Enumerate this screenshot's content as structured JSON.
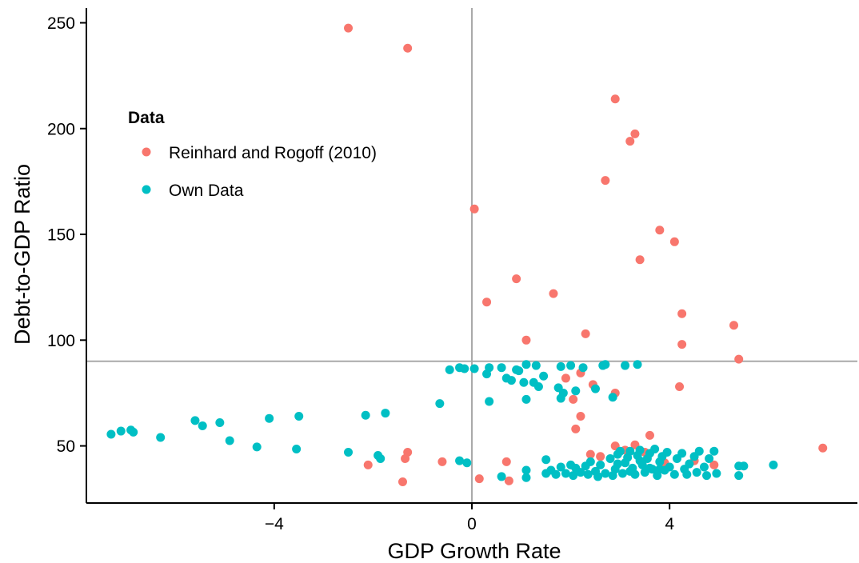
{
  "chart_data": {
    "type": "scatter",
    "title": "",
    "xlabel": "GDP Growth Rate",
    "ylabel": "Debt-to-GDP Ratio",
    "xlim": [
      -7.8,
      7.8
    ],
    "ylim": [
      23,
      257
    ],
    "x_ticks": [
      -4,
      0,
      4
    ],
    "x_tick_labels": [
      "−4",
      "0",
      "4"
    ],
    "y_ticks": [
      50,
      100,
      150,
      200,
      250
    ],
    "y_tick_labels": [
      "50",
      "100",
      "150",
      "200",
      "250"
    ],
    "grid": false,
    "reference_lines": {
      "x": 0,
      "y": 90,
      "color": "#aaaaaa"
    },
    "legend": {
      "title": "Data",
      "position": "top-left"
    },
    "series": [
      {
        "name": "Reinhard and Rogoff (2010)",
        "color": "#F8766D",
        "points": [
          [
            -2.5,
            247.5
          ],
          [
            -1.3,
            238
          ],
          [
            2.9,
            214
          ],
          [
            3.3,
            197.5
          ],
          [
            3.2,
            194
          ],
          [
            2.7,
            175.5
          ],
          [
            0.05,
            162
          ],
          [
            3.8,
            152
          ],
          [
            4.1,
            146.5
          ],
          [
            3.4,
            138
          ],
          [
            0.9,
            129
          ],
          [
            1.65,
            122
          ],
          [
            0.3,
            118
          ],
          [
            4.25,
            112.5
          ],
          [
            5.3,
            107
          ],
          [
            2.3,
            103
          ],
          [
            1.1,
            100
          ],
          [
            4.25,
            98
          ],
          [
            5.4,
            91
          ],
          [
            1.9,
            82
          ],
          [
            2.2,
            84.5
          ],
          [
            2.45,
            79
          ],
          [
            2.9,
            75
          ],
          [
            2.05,
            72
          ],
          [
            4.2,
            78
          ],
          [
            2.2,
            64
          ],
          [
            2.1,
            58
          ],
          [
            3.6,
            55
          ],
          [
            2.9,
            50
          ],
          [
            3.3,
            50.5
          ],
          [
            2.4,
            46
          ],
          [
            2.6,
            45
          ],
          [
            3.5,
            47
          ],
          [
            3.1,
            48
          ],
          [
            -1.3,
            47
          ],
          [
            -1.35,
            44
          ],
          [
            -0.6,
            42.5
          ],
          [
            -2.1,
            41
          ],
          [
            0.7,
            42.5
          ],
          [
            -1.4,
            33
          ],
          [
            0.15,
            34.5
          ],
          [
            0.75,
            33.5
          ],
          [
            4.9,
            41
          ],
          [
            7.1,
            49
          ],
          [
            3.9,
            42
          ],
          [
            4.5,
            43
          ]
        ]
      },
      {
        "name": "Own Data",
        "color": "#00BFC4",
        "points": [
          [
            -7.3,
            55.5
          ],
          [
            -7.1,
            57
          ],
          [
            -6.9,
            57.5
          ],
          [
            -6.85,
            56.5
          ],
          [
            -6.3,
            54
          ],
          [
            -5.6,
            62
          ],
          [
            -5.45,
            59.5
          ],
          [
            -5.1,
            61
          ],
          [
            -4.9,
            52.5
          ],
          [
            -4.35,
            49.5
          ],
          [
            -4.1,
            63
          ],
          [
            -3.55,
            48.5
          ],
          [
            -3.5,
            64
          ],
          [
            -2.5,
            47
          ],
          [
            -2.15,
            64.5
          ],
          [
            -1.9,
            45.5
          ],
          [
            -1.85,
            44
          ],
          [
            -1.75,
            65.5
          ],
          [
            -0.65,
            70
          ],
          [
            -0.45,
            86
          ],
          [
            -0.25,
            87
          ],
          [
            -0.15,
            86.5
          ],
          [
            0.05,
            86.5
          ],
          [
            0.3,
            84
          ],
          [
            0.35,
            87
          ],
          [
            0.6,
            87
          ],
          [
            0.7,
            82
          ],
          [
            0.8,
            81
          ],
          [
            0.95,
            85.5
          ],
          [
            1.05,
            80
          ],
          [
            1.1,
            88.5
          ],
          [
            1.25,
            80
          ],
          [
            1.35,
            78
          ],
          [
            1.45,
            83
          ],
          [
            1.3,
            88
          ],
          [
            1.8,
            87.5
          ],
          [
            2.0,
            88
          ],
          [
            2.25,
            87
          ],
          [
            2.65,
            88
          ],
          [
            2.7,
            88.5
          ],
          [
            3.1,
            88
          ],
          [
            3.35,
            88.5
          ],
          [
            0.35,
            71
          ],
          [
            1.1,
            72
          ],
          [
            1.8,
            72.5
          ],
          [
            1.85,
            75
          ],
          [
            2.1,
            76
          ],
          [
            2.5,
            77
          ],
          [
            2.85,
            73
          ],
          [
            1.75,
            77.5
          ],
          [
            0.9,
            86
          ],
          [
            -0.25,
            43
          ],
          [
            -0.1,
            42
          ],
          [
            0.6,
            35.5
          ],
          [
            1.1,
            38.5
          ],
          [
            1.1,
            35
          ],
          [
            1.5,
            43.5
          ],
          [
            1.5,
            37
          ],
          [
            1.6,
            38.5
          ],
          [
            1.7,
            36.5
          ],
          [
            1.8,
            40
          ],
          [
            1.9,
            37
          ],
          [
            2.0,
            41
          ],
          [
            2.05,
            36
          ],
          [
            2.1,
            39.5
          ],
          [
            2.2,
            37.5
          ],
          [
            2.3,
            40.5
          ],
          [
            2.35,
            36.5
          ],
          [
            2.4,
            42.5
          ],
          [
            2.5,
            38
          ],
          [
            2.55,
            35.5
          ],
          [
            2.6,
            41
          ],
          [
            2.7,
            37
          ],
          [
            2.8,
            44
          ],
          [
            2.85,
            36
          ],
          [
            2.9,
            39
          ],
          [
            2.95,
            46
          ],
          [
            3.0,
            47.5
          ],
          [
            3.05,
            37
          ],
          [
            3.1,
            42
          ],
          [
            3.15,
            44.5
          ],
          [
            3.2,
            47.5
          ],
          [
            3.25,
            39.5
          ],
          [
            3.3,
            36.5
          ],
          [
            3.35,
            45.5
          ],
          [
            3.4,
            48
          ],
          [
            3.45,
            41
          ],
          [
            3.5,
            37.5
          ],
          [
            3.55,
            44
          ],
          [
            3.6,
            46.5
          ],
          [
            3.65,
            39
          ],
          [
            3.7,
            48.5
          ],
          [
            3.75,
            36
          ],
          [
            3.8,
            42.5
          ],
          [
            3.85,
            45
          ],
          [
            3.9,
            38.5
          ],
          [
            3.95,
            47
          ],
          [
            4.0,
            40
          ],
          [
            4.1,
            36.5
          ],
          [
            4.15,
            44
          ],
          [
            4.25,
            46.5
          ],
          [
            4.3,
            39
          ],
          [
            4.4,
            41.5
          ],
          [
            4.5,
            45
          ],
          [
            4.55,
            37.5
          ],
          [
            4.6,
            47.5
          ],
          [
            4.7,
            40
          ],
          [
            4.75,
            36
          ],
          [
            4.8,
            44
          ],
          [
            4.9,
            47.5
          ],
          [
            4.95,
            37
          ],
          [
            5.4,
            40.5
          ],
          [
            5.4,
            36
          ],
          [
            5.5,
            40.5
          ],
          [
            6.1,
            41
          ],
          [
            3.6,
            39.5
          ],
          [
            3.4,
            43
          ],
          [
            3.2,
            38
          ],
          [
            2.95,
            41.5
          ],
          [
            3.8,
            39
          ],
          [
            4.35,
            36.5
          ]
        ]
      }
    ]
  }
}
